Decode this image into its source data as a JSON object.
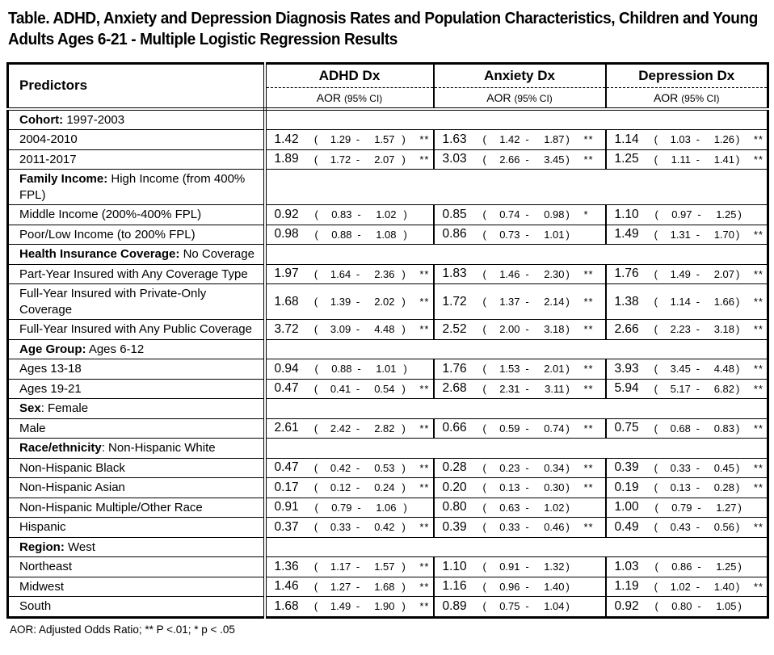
{
  "title": {
    "line1": "Table.  ADHD, Anxiety and Depression Diagnosis Rates and Population Characteristics, Children and Young",
    "line2": "Adults Ages 6-21 - Multiple Logistic Regression Results"
  },
  "header": {
    "predictors_label": "Predictors",
    "groups": [
      "ADHD Dx",
      "Anxiety Dx",
      "Depression Dx"
    ],
    "aor_label": "AOR",
    "ci_label": "(95% CI)"
  },
  "formatting": {
    "open_paren": "(",
    "range_dash": "-",
    "close_paren": ")"
  },
  "rows": [
    {
      "type": "category",
      "label_bold": "Cohort:",
      "label_rest": " 1997-2003"
    },
    {
      "type": "data",
      "label": "2004-2010",
      "cells": [
        {
          "aor": "1.42",
          "lo": "1.29",
          "hi": "1.57",
          "sig": "**"
        },
        {
          "aor": "1.63",
          "lo": "1.42",
          "hi": "1.87",
          "sig": "**"
        },
        {
          "aor": "1.14",
          "lo": "1.03",
          "hi": "1.26",
          "sig": "**"
        }
      ]
    },
    {
      "type": "data",
      "label": "2011-2017",
      "cells": [
        {
          "aor": "1.89",
          "lo": "1.72",
          "hi": "2.07",
          "sig": "**"
        },
        {
          "aor": "3.03",
          "lo": "2.66",
          "hi": "3.45",
          "sig": "**"
        },
        {
          "aor": "1.25",
          "lo": "1.11",
          "hi": "1.41",
          "sig": "**"
        }
      ]
    },
    {
      "type": "category",
      "label_bold": "Family Income:",
      "label_rest": " High Income (from 400% FPL)"
    },
    {
      "type": "data",
      "label": "Middle Income (200%-400% FPL)",
      "cells": [
        {
          "aor": "0.92",
          "lo": "0.83",
          "hi": "1.02",
          "sig": ""
        },
        {
          "aor": "0.85",
          "lo": "0.74",
          "hi": "0.98",
          "sig": "*"
        },
        {
          "aor": "1.10",
          "lo": "0.97",
          "hi": "1.25",
          "sig": ""
        }
      ]
    },
    {
      "type": "data",
      "label": "Poor/Low Income (to 200% FPL)",
      "cells": [
        {
          "aor": "0.98",
          "lo": "0.88",
          "hi": "1.08",
          "sig": ""
        },
        {
          "aor": "0.86",
          "lo": "0.73",
          "hi": "1.01",
          "sig": ""
        },
        {
          "aor": "1.49",
          "lo": "1.31",
          "hi": "1.70",
          "sig": "**"
        }
      ]
    },
    {
      "type": "category",
      "label_bold": "Health Insurance Coverage:",
      "label_rest": " No Coverage"
    },
    {
      "type": "data",
      "label": "Part-Year Insured with Any Coverage Type",
      "cells": [
        {
          "aor": "1.97",
          "lo": "1.64",
          "hi": "2.36",
          "sig": "**"
        },
        {
          "aor": "1.83",
          "lo": "1.46",
          "hi": "2.30",
          "sig": "**"
        },
        {
          "aor": "1.76",
          "lo": "1.49",
          "hi": "2.07",
          "sig": "**"
        }
      ]
    },
    {
      "type": "data",
      "label": "Full-Year Insured with Private-Only Coverage",
      "cells": [
        {
          "aor": "1.68",
          "lo": "1.39",
          "hi": "2.02",
          "sig": "**"
        },
        {
          "aor": "1.72",
          "lo": "1.37",
          "hi": "2.14",
          "sig": "**"
        },
        {
          "aor": "1.38",
          "lo": "1.14",
          "hi": "1.66",
          "sig": "**"
        }
      ]
    },
    {
      "type": "data",
      "label": "Full-Year Insured with Any Public Coverage",
      "cells": [
        {
          "aor": "3.72",
          "lo": "3.09",
          "hi": "4.48",
          "sig": "**"
        },
        {
          "aor": "2.52",
          "lo": "2.00",
          "hi": "3.18",
          "sig": "**"
        },
        {
          "aor": "2.66",
          "lo": "2.23",
          "hi": "3.18",
          "sig": "**"
        }
      ]
    },
    {
      "type": "category",
      "label_bold": "Age Group:",
      "label_rest": " Ages 6-12"
    },
    {
      "type": "data",
      "label": "Ages 13-18",
      "cells": [
        {
          "aor": "0.94",
          "lo": "0.88",
          "hi": "1.01",
          "sig": ""
        },
        {
          "aor": "1.76",
          "lo": "1.53",
          "hi": "2.01",
          "sig": "**"
        },
        {
          "aor": "3.93",
          "lo": "3.45",
          "hi": "4.48",
          "sig": "**"
        }
      ]
    },
    {
      "type": "data",
      "label": "Ages 19-21",
      "cells": [
        {
          "aor": "0.47",
          "lo": "0.41",
          "hi": "0.54",
          "sig": "**"
        },
        {
          "aor": "2.68",
          "lo": "2.31",
          "hi": "3.11",
          "sig": "**"
        },
        {
          "aor": "5.94",
          "lo": "5.17",
          "hi": "6.82",
          "sig": "**"
        }
      ]
    },
    {
      "type": "category",
      "label_bold": "Sex",
      "label_rest": ": Female"
    },
    {
      "type": "data",
      "label": "Male",
      "cells": [
        {
          "aor": "2.61",
          "lo": "2.42",
          "hi": "2.82",
          "sig": "**"
        },
        {
          "aor": "0.66",
          "lo": "0.59",
          "hi": "0.74",
          "sig": "**"
        },
        {
          "aor": "0.75",
          "lo": "0.68",
          "hi": "0.83",
          "sig": "**"
        }
      ]
    },
    {
      "type": "category",
      "label_bold": "Race/ethnicity",
      "label_rest": ": Non-Hispanic White"
    },
    {
      "type": "data",
      "label": "Non-Hispanic Black",
      "cells": [
        {
          "aor": "0.47",
          "lo": "0.42",
          "hi": "0.53",
          "sig": "**"
        },
        {
          "aor": "0.28",
          "lo": "0.23",
          "hi": "0.34",
          "sig": "**"
        },
        {
          "aor": "0.39",
          "lo": "0.33",
          "hi": "0.45",
          "sig": "**"
        }
      ]
    },
    {
      "type": "data",
      "label": "Non-Hispanic Asian",
      "cells": [
        {
          "aor": "0.17",
          "lo": "0.12",
          "hi": "0.24",
          "sig": "**"
        },
        {
          "aor": "0.20",
          "lo": "0.13",
          "hi": "0.30",
          "sig": "**"
        },
        {
          "aor": "0.19",
          "lo": "0.13",
          "hi": "0.28",
          "sig": "**"
        }
      ]
    },
    {
      "type": "data",
      "label": "Non-Hispanic Multiple/Other Race",
      "cells": [
        {
          "aor": "0.91",
          "lo": "0.79",
          "hi": "1.06",
          "sig": ""
        },
        {
          "aor": "0.80",
          "lo": "0.63",
          "hi": "1.02",
          "sig": ""
        },
        {
          "aor": "1.00",
          "lo": "0.79",
          "hi": "1.27",
          "sig": ""
        }
      ]
    },
    {
      "type": "data",
      "label": "Hispanic",
      "cells": [
        {
          "aor": "0.37",
          "lo": "0.33",
          "hi": "0.42",
          "sig": "**"
        },
        {
          "aor": "0.39",
          "lo": "0.33",
          "hi": "0.46",
          "sig": "**"
        },
        {
          "aor": "0.49",
          "lo": "0.43",
          "hi": "0.56",
          "sig": "**"
        }
      ]
    },
    {
      "type": "category",
      "label_bold": "Region:",
      "label_rest": " West"
    },
    {
      "type": "data",
      "label": "Northeast",
      "cells": [
        {
          "aor": "1.36",
          "lo": "1.17",
          "hi": "1.57",
          "sig": "**"
        },
        {
          "aor": "1.10",
          "lo": "0.91",
          "hi": "1.32",
          "sig": ""
        },
        {
          "aor": "1.03",
          "lo": "0.86",
          "hi": "1.25",
          "sig": ""
        }
      ]
    },
    {
      "type": "data",
      "label": "Midwest",
      "cells": [
        {
          "aor": "1.46",
          "lo": "1.27",
          "hi": "1.68",
          "sig": "**"
        },
        {
          "aor": "1.16",
          "lo": "0.96",
          "hi": "1.40",
          "sig": ""
        },
        {
          "aor": "1.19",
          "lo": "1.02",
          "hi": "1.40",
          "sig": "**"
        }
      ]
    },
    {
      "type": "data",
      "label": "South",
      "cells": [
        {
          "aor": "1.68",
          "lo": "1.49",
          "hi": "1.90",
          "sig": "**"
        },
        {
          "aor": "0.89",
          "lo": "0.75",
          "hi": "1.04",
          "sig": ""
        },
        {
          "aor": "0.92",
          "lo": "0.80",
          "hi": "1.05",
          "sig": ""
        }
      ]
    }
  ],
  "footnote": "AOR: Adjusted Odds Ratio; ** P <.01; * p < .05"
}
